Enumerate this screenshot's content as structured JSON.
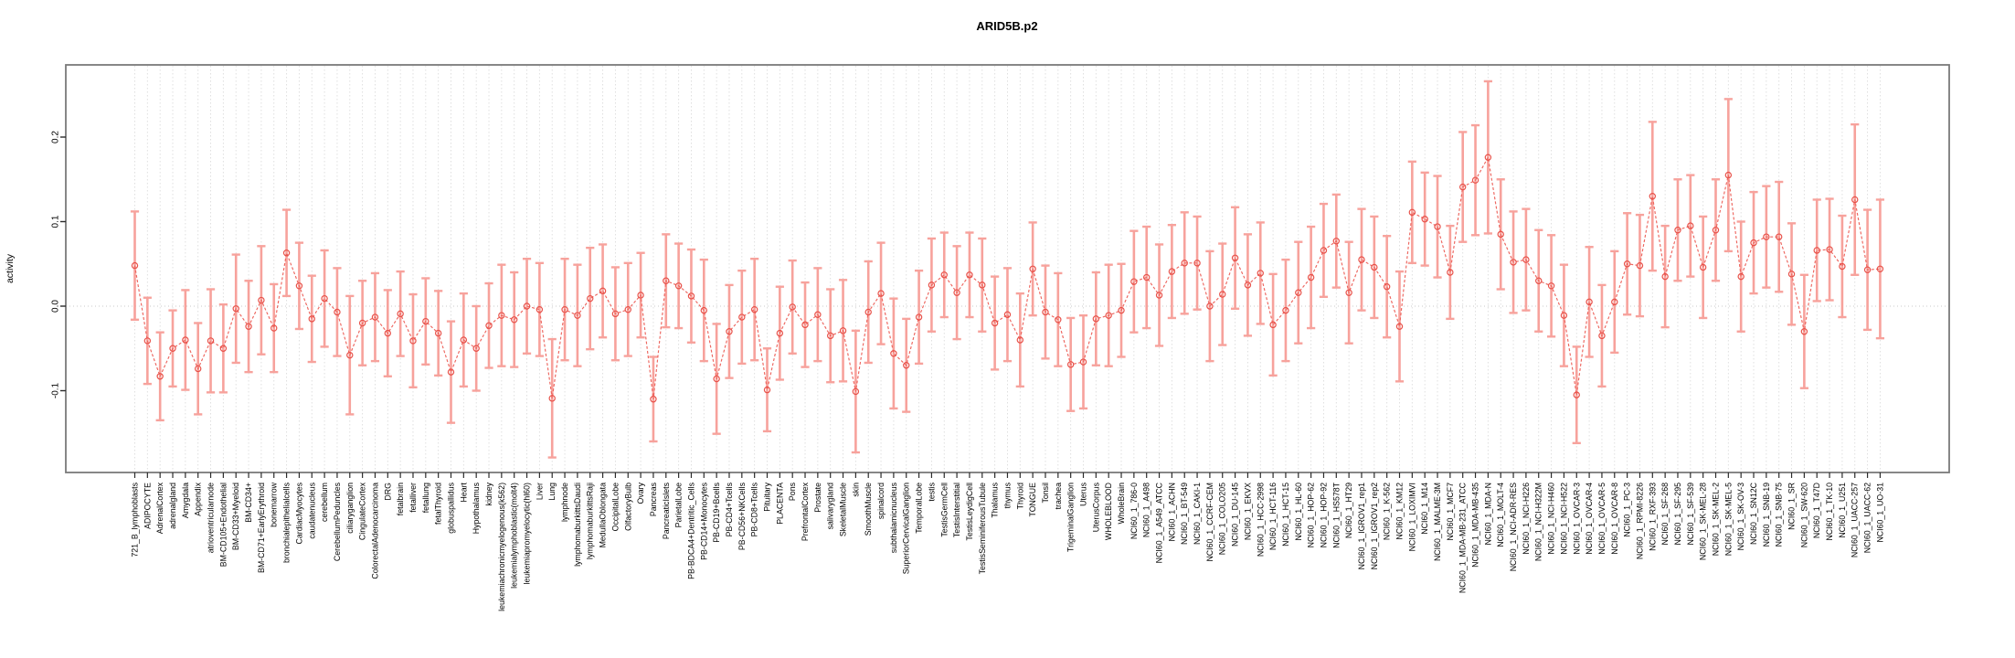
{
  "header": {
    "title": "ARID5B.p2"
  },
  "chart_data": {
    "type": "scatter",
    "title": "ARID5B.p2",
    "xlabel": "",
    "ylabel": "activity",
    "ylim": [
      -0.197,
      0.285
    ],
    "yticks": [
      0.2,
      0.1,
      0.0,
      -0.1
    ],
    "ytick_labels": [
      "0.2",
      "0.1",
      "0.0",
      "-0.1"
    ],
    "legend_position": "none",
    "grid": {
      "vertical_dashed_per_category": true,
      "horizontal_dotted_zero_line": true
    },
    "marker": "open-circle",
    "line_style": "dashed",
    "error_bars": true,
    "colors": {
      "line": "#ed655e",
      "marker": "#e8524a",
      "error_bar": "#f7a29c",
      "grid": "#dcdcdc",
      "zero_line": "#c9c9c9",
      "frame": "#7a7a7a",
      "tick": "#2b2b2b",
      "text": "#000000"
    },
    "categories": [
      "721_B_lymphoblasts",
      "ADIPOCYTE",
      "AdrenalCortex",
      "adrenalgland",
      "Amygdala",
      "Appendix",
      "atrioventricularnode",
      "BM-CD105+Endothelial",
      "BM-CD33+Myeloid",
      "BM-CD34+",
      "BM-CD71+EarlyErythroid",
      "bonemarrow",
      "bronchialepithelialcells",
      "CardiacMyocytes",
      "caudatenucleus",
      "cerebellum",
      "CerebellumPeduncles",
      "ciliaryganglion",
      "CingulateCortex",
      "ColorectalAdenocarcinoma",
      "DRG",
      "fetalbrain",
      "fetalliver",
      "fetallung",
      "fetalThyroid",
      "globuspallidus",
      "Heart",
      "Hypothalamus",
      "kidney",
      "leukemiachronicmyelogenous(k562)",
      "leukemialymphoblastic(molt4)",
      "leukemiapromyelocytic(hl60)",
      "Liver",
      "Lung",
      "lymphnode",
      "lymphomaburkittsDaudi",
      "lymphomaburkittsRaji",
      "MedullaOblongata",
      "OccipitalLobe",
      "OlfactoryBulb",
      "Ovary",
      "Pancreas",
      "PancreaticIslets",
      "ParietalLobe",
      "PB-BDCA4+Dentritic_Cells",
      "PB-CD14+Monocytes",
      "PB-CD19+Bcells",
      "PB-CD4+Tcells",
      "PB-CD56+NKCells",
      "PB-CD8+Tcells",
      "Pituitary",
      "PLACENTA",
      "Pons",
      "PrefrontalCortex",
      "Prostate",
      "salivarygland",
      "SkeletalMuscle",
      "skin",
      "SmoothMuscle",
      "spinalcord",
      "subthalamicnucleus",
      "SuperiorCervicalGanglion",
      "TemporalLobe",
      "testis",
      "TestisGermCell",
      "TestisInterstitial",
      "TestisLeydigCell",
      "TestisSeminiferousTubule",
      "Thalamus",
      "thymus",
      "Thyroid",
      "TONGUE",
      "Tonsil",
      "trachea",
      "TrigeminalGanglion",
      "Uterus",
      "UterusCorpus",
      "WHOLEBLOOD",
      "WholeBrain",
      "NCI60_1_786-0",
      "NCI60_1_A498",
      "NCI60_1_A549_ATCC",
      "NCI60_1_ACHN",
      "NCI60_1_BT-549",
      "NCI60_1_CAKI-1",
      "NCI60_1_CCRF-CEM",
      "NCI60_1_COLO205",
      "NCI60_1_DU-145",
      "NCI60_1_EKVX",
      "NCI60_1_HCC-2998",
      "NCI60_1_HCT-116",
      "NCI60_1_HCT-15",
      "NCI60_1_HL-60",
      "NCI60_1_HOP-62",
      "NCI60_1_HOP-92",
      "NCI60_1_HS578T",
      "NCI60_1_HT29",
      "NCI60_1_IGROV1_rep1",
      "NCI60_1_IGROV1_rep2",
      "NCI60_1_K-562",
      "NCI60_1_KM12",
      "NCI60_1_LOXIMVI",
      "NCI60_1_M14",
      "NCI60_1_MALME-3M",
      "NCI60_1_MCF7",
      "NCI60_1_MDA-MB-231_ATCC",
      "NCI60_1_MDA-MB-435",
      "NCI60_1_MDA-N",
      "NCI60_1_MOLT-4",
      "NCI60_1_NCI-ADR-RES",
      "NCI60_1_NCI-H226",
      "NCI60_1_NCI-H322M",
      "NCI60_1_NCI-H460",
      "NCI60_1_NCI-H522",
      "NCI60_1_OVCAR-3",
      "NCI60_1_OVCAR-4",
      "NCI60_1_OVCAR-5",
      "NCI60_1_OVCAR-8",
      "NCI60_1_PC-3",
      "NCI60_1_RPMI-8226",
      "NCI60_1_RXF-393",
      "NCI60_1_SF-268",
      "NCI60_1_SF-295",
      "NCI60_1_SF-539",
      "NCI60_1_SK-MEL-28",
      "NCI60_1_SK-MEL-2",
      "NCI60_1_SK-MEL-5",
      "NCI60_1_SK-OV-3",
      "NCI60_1_SN12C",
      "NCI60_1_SNB-19",
      "NCI60_1_SNB-75",
      "NCI60_1_SR",
      "NCI60_1_SW-620",
      "NCI60_1_T47D",
      "NCI60_1_TK-10",
      "NCI60_1_U251",
      "NCI60_1_UACC-257",
      "NCI60_1_UACC-62",
      "NCI60_1_UO-31"
    ],
    "values": [
      0.048,
      -0.041,
      -0.083,
      -0.05,
      -0.04,
      -0.074,
      -0.041,
      -0.05,
      -0.003,
      -0.024,
      0.007,
      -0.026,
      0.063,
      0.024,
      -0.015,
      0.009,
      -0.007,
      -0.058,
      -0.02,
      -0.013,
      -0.032,
      -0.009,
      -0.041,
      -0.018,
      -0.032,
      -0.078,
      -0.04,
      -0.05,
      -0.023,
      -0.011,
      -0.016,
      0.0,
      -0.004,
      -0.109,
      -0.004,
      -0.011,
      0.009,
      0.018,
      -0.009,
      -0.004,
      0.013,
      -0.11,
      0.03,
      0.024,
      0.012,
      -0.005,
      -0.086,
      -0.03,
      -0.013,
      -0.004,
      -0.099,
      -0.032,
      -0.001,
      -0.022,
      -0.01,
      -0.035,
      -0.029,
      -0.101,
      -0.007,
      0.015,
      -0.056,
      -0.07,
      -0.013,
      0.025,
      0.037,
      0.016,
      0.037,
      0.025,
      -0.02,
      -0.01,
      -0.04,
      0.044,
      -0.007,
      -0.016,
      -0.069,
      -0.066,
      -0.015,
      -0.011,
      -0.005,
      0.029,
      0.034,
      0.013,
      0.041,
      0.051,
      0.051,
      0.0,
      0.014,
      0.057,
      0.025,
      0.039,
      -0.022,
      -0.005,
      0.016,
      0.034,
      0.066,
      0.077,
      0.016,
      0.055,
      0.046,
      0.023,
      -0.024,
      0.111,
      0.103,
      0.094,
      0.04,
      0.141,
      0.149,
      0.176,
      0.085,
      0.052,
      0.055,
      0.03,
      0.024,
      -0.011,
      -0.105,
      0.005,
      -0.035,
      0.005,
      0.05,
      0.048,
      0.13,
      0.035,
      0.09,
      0.095,
      0.046,
      0.09,
      0.155,
      0.035,
      0.075,
      0.082,
      0.082,
      0.038,
      -0.03,
      0.066,
      0.067,
      0.047,
      0.126,
      0.043,
      0.044
    ],
    "errors": [
      0.064,
      0.051,
      0.052,
      0.045,
      0.059,
      0.054,
      0.061,
      0.052,
      0.064,
      0.054,
      0.064,
      0.052,
      0.051,
      0.051,
      0.051,
      0.057,
      0.052,
      0.07,
      0.05,
      0.052,
      0.051,
      0.05,
      0.055,
      0.051,
      0.05,
      0.06,
      0.055,
      0.05,
      0.05,
      0.06,
      0.056,
      0.056,
      0.055,
      0.07,
      0.06,
      0.06,
      0.06,
      0.055,
      0.055,
      0.055,
      0.05,
      0.05,
      0.055,
      0.05,
      0.055,
      0.06,
      0.065,
      0.055,
      0.055,
      0.06,
      0.049,
      0.055,
      0.055,
      0.05,
      0.055,
      0.055,
      0.06,
      0.072,
      0.06,
      0.06,
      0.065,
      0.055,
      0.055,
      0.055,
      0.05,
      0.055,
      0.05,
      0.055,
      0.055,
      0.055,
      0.055,
      0.055,
      0.055,
      0.055,
      0.055,
      0.055,
      0.055,
      0.06,
      0.055,
      0.06,
      0.06,
      0.06,
      0.055,
      0.06,
      0.055,
      0.065,
      0.06,
      0.06,
      0.06,
      0.06,
      0.06,
      0.06,
      0.06,
      0.06,
      0.055,
      0.055,
      0.06,
      0.06,
      0.06,
      0.06,
      0.065,
      0.06,
      0.055,
      0.06,
      0.055,
      0.065,
      0.065,
      0.09,
      0.065,
      0.06,
      0.06,
      0.06,
      0.06,
      0.06,
      0.057,
      0.065,
      0.06,
      0.06,
      0.06,
      0.06,
      0.088,
      0.06,
      0.06,
      0.06,
      0.06,
      0.06,
      0.09,
      0.065,
      0.06,
      0.06,
      0.065,
      0.06,
      0.067,
      0.06,
      0.06,
      0.06,
      0.089,
      0.071,
      0.082
    ]
  }
}
